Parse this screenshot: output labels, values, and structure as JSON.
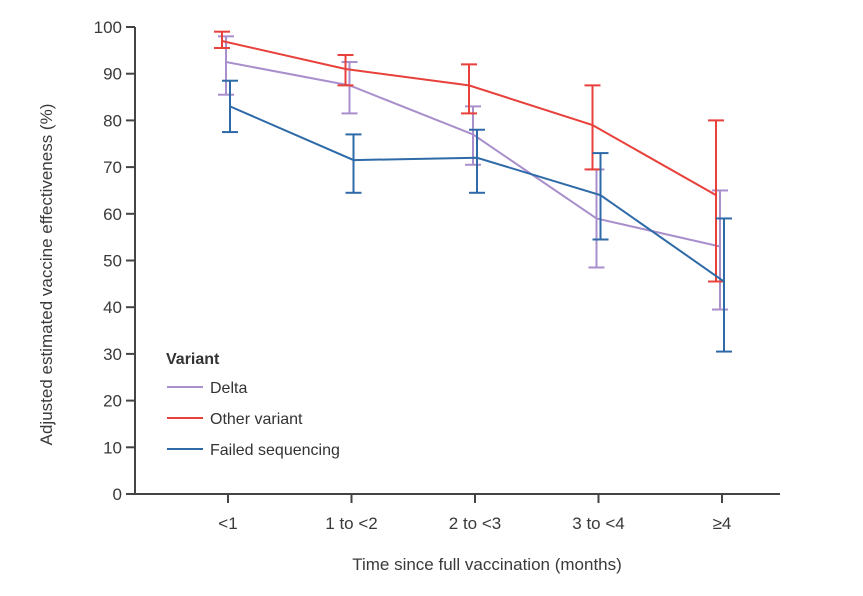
{
  "chart_data": {
    "type": "line",
    "title": "",
    "xlabel": "Time since full vaccination (months)",
    "ylabel": "Adjusted estimated vaccine effectiveness (%)",
    "categories": [
      "<1",
      "1 to <2",
      "2 to <3",
      "3 to <4",
      "≥4"
    ],
    "ylim": [
      0,
      100
    ],
    "yticks": [
      0,
      10,
      20,
      30,
      40,
      50,
      60,
      70,
      80,
      90,
      100
    ],
    "grid": false,
    "legend": {
      "title": "Variant",
      "placement": "bottom-left"
    },
    "series": [
      {
        "name": "Delta",
        "color": "#a98fcb",
        "values": [
          92.5,
          87.5,
          77,
          59,
          53
        ],
        "lower": [
          85.5,
          81.5,
          70.5,
          48.5,
          39.5
        ],
        "upper": [
          98,
          92.5,
          83,
          69.5,
          65
        ]
      },
      {
        "name": "Other variant",
        "color": "#e8403a",
        "values": [
          97,
          91,
          87.5,
          79,
          64
        ],
        "lower": [
          95.5,
          87.5,
          81.5,
          69.5,
          45.5
        ],
        "upper": [
          99,
          94,
          92,
          87.5,
          80
        ]
      },
      {
        "name": "Failed sequencing",
        "color": "#2f6aa8",
        "values": [
          83,
          71.5,
          72,
          64,
          45.5
        ],
        "lower": [
          77.5,
          64.5,
          64.5,
          54.5,
          30.5
        ],
        "upper": [
          88.5,
          77,
          78,
          73,
          59
        ]
      }
    ]
  }
}
